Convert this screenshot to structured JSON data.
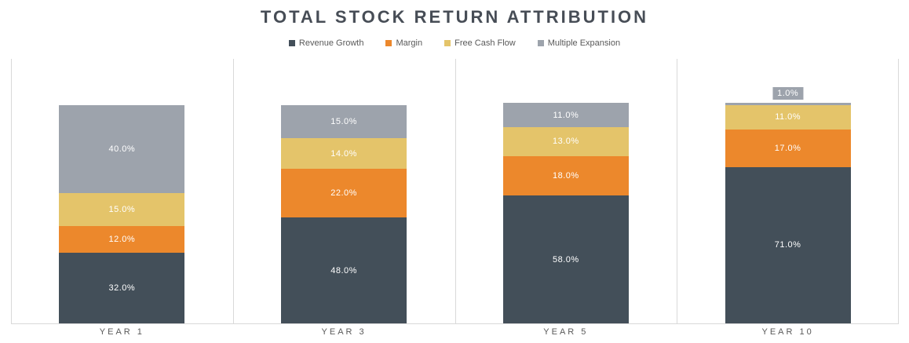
{
  "title": "TOTAL STOCK RETURN ATTRIBUTION",
  "legend": {
    "items": [
      "Revenue Growth",
      "Margin",
      "Free Cash Flow",
      "Multiple Expansion"
    ]
  },
  "colors": {
    "revenue_growth": "#434F59",
    "margin": "#EC882C",
    "free_cash_flow": "#E4C46A",
    "multiple_expansion": "#9DA3AC",
    "gridline": "#D9D9D9",
    "title_text": "#474D56",
    "axis_text": "#595959",
    "data_label_text": "#FFFFFF"
  },
  "chart_data": {
    "type": "bar",
    "stacked": true,
    "title": "TOTAL STOCK RETURN ATTRIBUTION",
    "categories": [
      "YEAR 1",
      "YEAR 3",
      "YEAR 5",
      "YEAR 10"
    ],
    "series": [
      {
        "name": "Revenue Growth",
        "color": "#434F59",
        "values": [
          32.0,
          48.0,
          58.0,
          71.0
        ],
        "labels": [
          "32.0%",
          "48.0%",
          "58.0%",
          "71.0%"
        ]
      },
      {
        "name": "Margin",
        "color": "#EC882C",
        "values": [
          12.0,
          22.0,
          18.0,
          17.0
        ],
        "labels": [
          "12.0%",
          "22.0%",
          "18.0%",
          "17.0%"
        ]
      },
      {
        "name": "Free Cash Flow",
        "color": "#E4C46A",
        "values": [
          15.0,
          14.0,
          13.0,
          11.0
        ],
        "labels": [
          "15.0%",
          "14.0%",
          "13.0%",
          "11.0%"
        ]
      },
      {
        "name": "Multiple Expansion",
        "color": "#9DA3AC",
        "values": [
          40.0,
          15.0,
          11.0,
          1.0
        ],
        "labels": [
          "40.0%",
          "15.0%",
          "11.0%",
          "1.0%"
        ]
      }
    ],
    "xlabel": "",
    "ylabel": "",
    "ylim": [
      0,
      120
    ],
    "grid": "vertical-category-separators",
    "legend_position": "top",
    "data_label_format": "0.0%"
  }
}
